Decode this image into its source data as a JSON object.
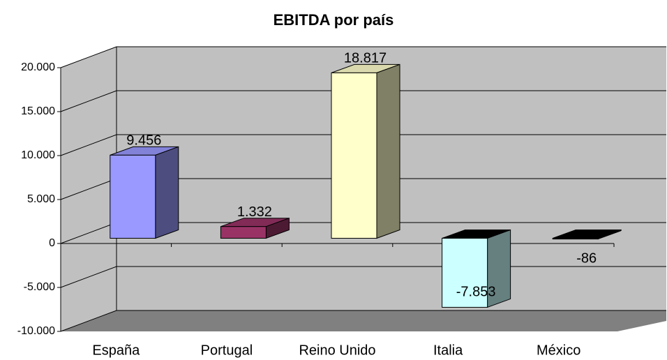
{
  "chart_data": {
    "type": "bar3d",
    "title": "EBITDA por país",
    "categories": [
      "España",
      "Portugal",
      "Reino Unido",
      "Italia",
      "México"
    ],
    "values": [
      9456,
      1332,
      18817,
      -7853,
      -86
    ],
    "value_labels": [
      "9.456",
      "1.332",
      "18.817",
      "-7.853",
      "-86"
    ],
    "colors": [
      "#9999ff",
      "#993366",
      "#ffffcc",
      "#ccffff",
      "#000000"
    ],
    "ylim": [
      -10000,
      20000
    ],
    "yticks": [
      {
        "value": -10000,
        "label": "-10.000"
      },
      {
        "value": -5000,
        "label": "-5.000"
      },
      0,
      {
        "value": 5000,
        "label": "5.000"
      },
      {
        "value": 10000,
        "label": "10.000"
      },
      {
        "value": 15000,
        "label": "15.000"
      },
      {
        "value": 20000,
        "label": "20.000"
      }
    ],
    "grid": true
  }
}
